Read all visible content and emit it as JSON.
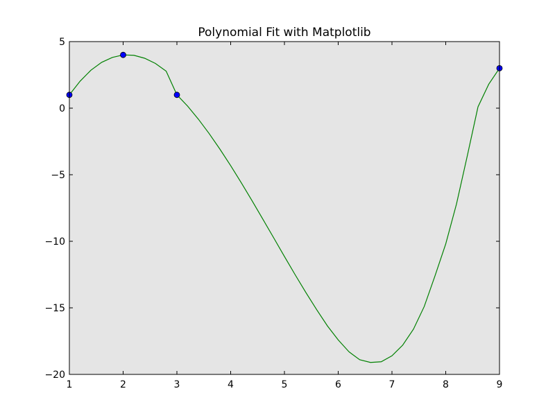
{
  "chart_data": {
    "type": "line",
    "title": "Polynomial Fit with Matplotlib",
    "xlabel": "",
    "ylabel": "",
    "xlim": [
      1,
      9
    ],
    "ylim": [
      -20,
      5
    ],
    "xticks": [
      1,
      2,
      3,
      4,
      5,
      6,
      7,
      8,
      9
    ],
    "yticks": [
      5,
      0,
      -5,
      -10,
      -15,
      -20
    ],
    "ytick_labels": [
      "5",
      "0",
      "−5",
      "−10",
      "−15",
      "−20"
    ],
    "grid": false,
    "background_color": "#e5e5e5",
    "series": [
      {
        "type": "scatter",
        "x": [
          1,
          2,
          3,
          9
        ],
        "y": [
          1,
          4,
          1,
          3
        ],
        "color": "#0000ff"
      },
      {
        "type": "line",
        "color": "#008000",
        "x": [
          1,
          1.2,
          1.4,
          1.6,
          1.8,
          2,
          2.2,
          2.4,
          2.6,
          2.8,
          3,
          3.2,
          3.4,
          3.6,
          3.8,
          4,
          4.2,
          4.4,
          4.6,
          4.8,
          5,
          5.2,
          5.4,
          5.6,
          5.8,
          6,
          6.2,
          6.4,
          6.6,
          6.8,
          7,
          7.2,
          7.4,
          7.6,
          7.8,
          8,
          8.2,
          8.4,
          8.6,
          8.8,
          9
        ],
        "y": [
          1,
          2.03,
          2.85,
          3.44,
          3.81,
          4,
          3.97,
          3.75,
          3.36,
          2.78,
          1,
          0.15,
          -0.83,
          -1.91,
          -3.08,
          -4.32,
          -5.62,
          -6.97,
          -8.35,
          -9.74,
          -11.14,
          -12.52,
          -13.86,
          -15.14,
          -16.36,
          -17.41,
          -18.3,
          -18.9,
          -19.1,
          -19.05,
          -18.6,
          -17.8,
          -16.6,
          -14.9,
          -12.6,
          -10.2,
          -7.2,
          -3.6,
          0.1,
          1.8,
          3
        ]
      }
    ]
  }
}
